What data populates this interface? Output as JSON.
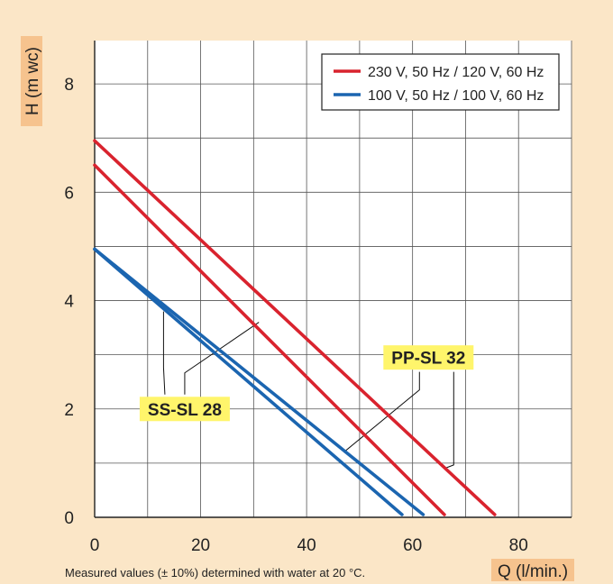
{
  "colors": {
    "background": "#fbe6c7",
    "plot": "#ffffff",
    "axis_label_bg": "#f6c38e",
    "callout_bg": "#fff56b",
    "red": "#d9232e",
    "blue": "#1b65b0"
  },
  "chart_data": {
    "type": "line",
    "xlabel": "Q (l/min.)",
    "ylabel": "H (m wc)",
    "xlim": [
      0,
      90
    ],
    "ylim": [
      0,
      8.8
    ],
    "x_ticks": [
      "0",
      "20",
      "40",
      "60",
      "80"
    ],
    "y_ticks": [
      "0",
      "2",
      "4",
      "6",
      "8"
    ],
    "grid": true,
    "legend_position": "top-right",
    "legend": [
      {
        "label": "230 V, 50 Hz / 120 V, 60 Hz",
        "color": "#d9232e"
      },
      {
        "label": "100 V, 50 Hz / 100 V, 60 Hz",
        "color": "#1b65b0"
      }
    ],
    "series": [
      {
        "model": "PP-SL 32",
        "color": "#d9232e",
        "x": [
          0,
          75.5
        ],
        "y": [
          6.95,
          0.05
        ]
      },
      {
        "model": "SS-SL 28",
        "color": "#d9232e",
        "x": [
          0,
          66
        ],
        "y": [
          6.5,
          0.05
        ]
      },
      {
        "model": "PP-SL 32",
        "color": "#1b65b0",
        "x": [
          0,
          62
        ],
        "y": [
          4.95,
          0.05
        ]
      },
      {
        "model": "SS-SL 28",
        "color": "#1b65b0",
        "x": [
          0,
          58
        ],
        "y": [
          4.95,
          0.05
        ]
      }
    ],
    "callouts": [
      {
        "label": "SS-SL 28",
        "box": [
          17,
          2.0
        ],
        "leaders": [
          [
            13,
            3.8
          ],
          [
            31,
            3.6
          ]
        ]
      },
      {
        "label": "PP-SL 32",
        "box": [
          63,
          2.95
        ],
        "leaders": [
          [
            47,
            1.2
          ],
          [
            66,
            0.9
          ]
        ]
      }
    ],
    "footnote": "Measured values (± 10%) determined with water at 20 °C."
  }
}
